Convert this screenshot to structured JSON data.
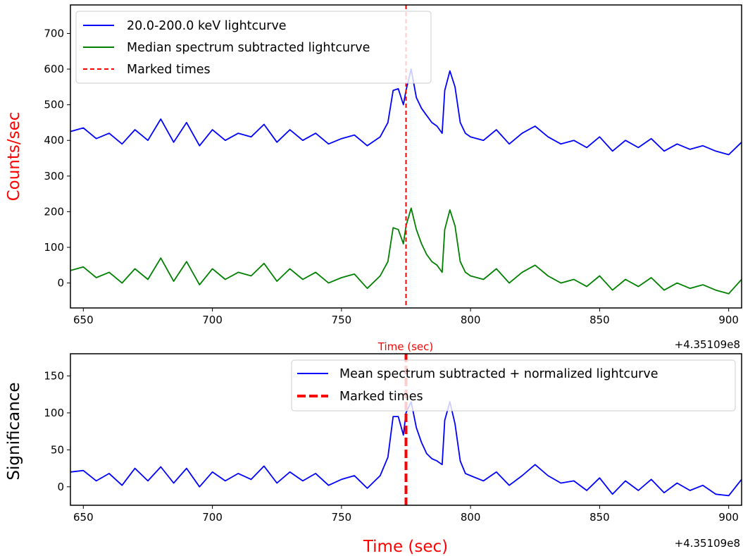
{
  "chart_data": [
    {
      "type": "line",
      "xlabel": "Time (sec)",
      "ylabel": "Counts/sec",
      "x_offset_label": "+4.35109e8",
      "xlim": [
        645,
        905
      ],
      "ylim": [
        -70,
        780
      ],
      "x_ticks": [
        "650",
        "700",
        "750",
        "800",
        "850",
        "900"
      ],
      "y_ticks": [
        "0",
        "100",
        "200",
        "300",
        "400",
        "500",
        "600",
        "700"
      ],
      "marked_time": 775,
      "legend_position": "top-left",
      "legend": [
        {
          "label": "20.0-200.0 keV lightcurve",
          "color": "#0000ff",
          "style": "solid"
        },
        {
          "label": "Median spectrum subtracted lightcurve",
          "color": "#008000",
          "style": "solid"
        },
        {
          "label": "Marked times",
          "color": "#ff0000",
          "style": "dashed"
        }
      ],
      "series": [
        {
          "color": "#0000ff",
          "x": [
            645,
            650,
            655,
            660,
            665,
            670,
            675,
            680,
            685,
            690,
            695,
            700,
            705,
            710,
            715,
            720,
            725,
            730,
            735,
            740,
            745,
            750,
            755,
            760,
            765,
            768,
            770,
            772,
            774,
            775,
            777,
            779,
            781,
            783,
            785,
            787,
            789,
            790,
            792,
            794,
            796,
            798,
            800,
            805,
            810,
            815,
            820,
            825,
            830,
            835,
            840,
            845,
            850,
            855,
            860,
            865,
            870,
            875,
            880,
            885,
            890,
            895,
            900,
            905
          ],
          "y": [
            425,
            435,
            405,
            420,
            390,
            430,
            400,
            460,
            395,
            450,
            385,
            430,
            400,
            420,
            410,
            445,
            395,
            430,
            400,
            420,
            390,
            405,
            415,
            385,
            410,
            450,
            540,
            545,
            500,
            540,
            600,
            520,
            490,
            470,
            450,
            440,
            420,
            540,
            595,
            550,
            450,
            420,
            410,
            400,
            430,
            390,
            420,
            440,
            410,
            390,
            400,
            380,
            410,
            370,
            400,
            380,
            405,
            370,
            390,
            375,
            385,
            370,
            360,
            395
          ]
        },
        {
          "color": "#008000",
          "x": [
            645,
            650,
            655,
            660,
            665,
            670,
            675,
            680,
            685,
            690,
            695,
            700,
            705,
            710,
            715,
            720,
            725,
            730,
            735,
            740,
            745,
            750,
            755,
            760,
            765,
            768,
            770,
            772,
            774,
            775,
            777,
            779,
            781,
            783,
            785,
            787,
            789,
            790,
            792,
            794,
            796,
            798,
            800,
            805,
            810,
            815,
            820,
            825,
            830,
            835,
            840,
            845,
            850,
            855,
            860,
            865,
            870,
            875,
            880,
            885,
            890,
            895,
            900,
            905
          ],
          "y": [
            35,
            45,
            15,
            30,
            0,
            40,
            10,
            70,
            5,
            60,
            -5,
            40,
            10,
            30,
            20,
            55,
            5,
            40,
            10,
            30,
            0,
            15,
            25,
            -15,
            20,
            60,
            155,
            150,
            110,
            160,
            210,
            150,
            110,
            80,
            60,
            50,
            30,
            150,
            205,
            160,
            60,
            30,
            20,
            10,
            40,
            0,
            30,
            50,
            20,
            0,
            10,
            -10,
            20,
            -20,
            10,
            -10,
            15,
            -20,
            0,
            -15,
            -5,
            -20,
            -30,
            10
          ]
        }
      ]
    },
    {
      "type": "line",
      "xlabel": "Time (sec)",
      "ylabel": "Significance",
      "x_offset_label": "+4.35109e8",
      "xlim": [
        645,
        905
      ],
      "ylim": [
        -25,
        180
      ],
      "x_ticks": [
        "650",
        "700",
        "750",
        "800",
        "850",
        "900"
      ],
      "y_ticks": [
        "0",
        "50",
        "100",
        "150"
      ],
      "marked_time": 775,
      "legend_position": "top-right",
      "legend": [
        {
          "label": "Mean spectrum subtracted + normalized lightcurve",
          "color": "#0000ff",
          "style": "solid"
        },
        {
          "label": "Marked times",
          "color": "#ff0000",
          "style": "dashed"
        }
      ],
      "series": [
        {
          "color": "#0000ff",
          "x": [
            645,
            650,
            655,
            660,
            665,
            670,
            675,
            680,
            685,
            690,
            695,
            700,
            705,
            710,
            715,
            720,
            725,
            730,
            735,
            740,
            745,
            750,
            755,
            760,
            765,
            768,
            770,
            772,
            774,
            775,
            777,
            779,
            781,
            783,
            785,
            787,
            789,
            790,
            792,
            794,
            796,
            798,
            800,
            805,
            810,
            815,
            820,
            825,
            830,
            835,
            840,
            845,
            850,
            855,
            860,
            865,
            870,
            875,
            880,
            885,
            890,
            895,
            900,
            905
          ],
          "y": [
            20,
            22,
            8,
            18,
            2,
            25,
            8,
            27,
            5,
            25,
            0,
            20,
            8,
            18,
            10,
            28,
            5,
            20,
            8,
            18,
            2,
            10,
            15,
            -2,
            15,
            40,
            95,
            95,
            70,
            100,
            115,
            80,
            60,
            45,
            38,
            35,
            30,
            90,
            115,
            85,
            35,
            18,
            15,
            8,
            20,
            2,
            15,
            30,
            15,
            5,
            8,
            -5,
            12,
            -10,
            8,
            -5,
            10,
            -8,
            5,
            -5,
            2,
            -10,
            -12,
            10
          ]
        }
      ]
    }
  ]
}
